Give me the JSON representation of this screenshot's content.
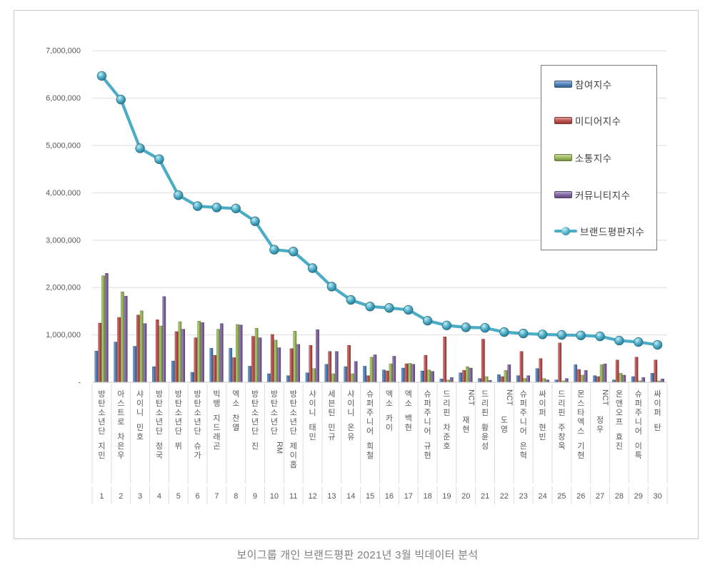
{
  "caption": "보이그룹 개인 브랜드평판  2021년 3월 빅데이터 분석",
  "y_axis": {
    "ticks": [
      "7,000,000",
      "6,000,000",
      "5,000,000",
      "4,000,000",
      "3,000,000",
      "2,000,000",
      "1,000,000",
      "-"
    ],
    "max": 7000000,
    "min": 0,
    "step": 1000000
  },
  "chart_data": {
    "type": "bar",
    "title": "",
    "xlabel": "",
    "ylabel": "",
    "ylim": [
      0,
      7000000
    ],
    "grid": true,
    "legend_position": "top-right",
    "categories": [
      "방탄소년단 지민",
      "아스트로 차은우",
      "샤이니 민호",
      "방탄소년단 정국",
      "방탄소년단 뷔",
      "방탄소년단 슈가",
      "빅뱅 지드래곤",
      "엑소 찬열",
      "방탄소년단 진",
      "방탄소년단 RM",
      "방탄소년단 제이홉",
      "샤이니 태민",
      "세븐틴 민규",
      "샤이니 온유",
      "슈퍼주니어 희철",
      "엑소 카이",
      "엑소 백현",
      "슈퍼주니어 규현",
      "드리핀 차준호",
      "NCT 재현",
      "드리핀 황윤성",
      "NCT 도영",
      "슈퍼주니어 은혁",
      "싸이퍼 현빈",
      "드리핀 주창욱",
      "몬스타엑스 기현",
      "NCT 정우",
      "온앤오프 효진",
      "슈퍼주니어 이특",
      "싸이퍼 탄"
    ],
    "ranks": [
      "1",
      "2",
      "3",
      "4",
      "5",
      "6",
      "7",
      "8",
      "9",
      "10",
      "11",
      "12",
      "13",
      "14",
      "15",
      "16",
      "17",
      "18",
      "19",
      "20",
      "21",
      "22",
      "23",
      "24",
      "25",
      "26",
      "27",
      "28",
      "29",
      "30"
    ],
    "series": [
      {
        "name": "참여지수",
        "key": "participation",
        "type": "bar",
        "color": "#4F81BD",
        "values": [
          660000,
          850000,
          760000,
          330000,
          450000,
          210000,
          720000,
          720000,
          340000,
          180000,
          140000,
          200000,
          380000,
          330000,
          340000,
          260000,
          300000,
          240000,
          70000,
          200000,
          80000,
          160000,
          140000,
          290000,
          50000,
          370000,
          140000,
          50000,
          120000,
          190000
        ]
      },
      {
        "name": "미디어지수",
        "key": "media",
        "type": "bar",
        "color": "#C0504D",
        "values": [
          1250000,
          1370000,
          1420000,
          1320000,
          1070000,
          940000,
          570000,
          520000,
          970000,
          1010000,
          710000,
          780000,
          650000,
          780000,
          140000,
          240000,
          390000,
          570000,
          960000,
          250000,
          910000,
          120000,
          650000,
          500000,
          830000,
          270000,
          120000,
          470000,
          530000,
          470000
        ]
      },
      {
        "name": "소통지수",
        "key": "communication",
        "type": "bar",
        "color": "#9BBB59",
        "values": [
          2250000,
          1910000,
          1510000,
          1190000,
          1280000,
          1290000,
          1120000,
          1220000,
          1140000,
          890000,
          1080000,
          290000,
          180000,
          180000,
          530000,
          390000,
          400000,
          260000,
          50000,
          330000,
          120000,
          250000,
          80000,
          80000,
          30000,
          150000,
          370000,
          190000,
          30000,
          30000
        ]
      },
      {
        "name": "커뮤니티지수",
        "key": "community",
        "type": "bar",
        "color": "#8064A2",
        "values": [
          2300000,
          1820000,
          1240000,
          1810000,
          1120000,
          1260000,
          1240000,
          1210000,
          940000,
          730000,
          800000,
          1110000,
          650000,
          440000,
          580000,
          550000,
          380000,
          230000,
          100000,
          300000,
          40000,
          370000,
          140000,
          50000,
          80000,
          250000,
          390000,
          150000,
          100000,
          70000
        ]
      },
      {
        "name": "브랜드평판지수",
        "key": "brand-reputation",
        "type": "line",
        "color": "#4BACC6",
        "values": [
          6470000,
          5970000,
          4940000,
          4710000,
          3950000,
          3720000,
          3690000,
          3670000,
          3400000,
          2800000,
          2760000,
          2410000,
          2020000,
          1740000,
          1600000,
          1570000,
          1530000,
          1300000,
          1200000,
          1160000,
          1150000,
          1060000,
          1030000,
          1010000,
          1000000,
          990000,
          970000,
          880000,
          850000,
          790000
        ]
      }
    ]
  },
  "style": {
    "gridline_color": "#dedede",
    "axis_line_color": "#c6c6c6",
    "tick_label_color": "#595959",
    "category_label_color": "#595959",
    "separator_color": "#dcdcdc"
  }
}
